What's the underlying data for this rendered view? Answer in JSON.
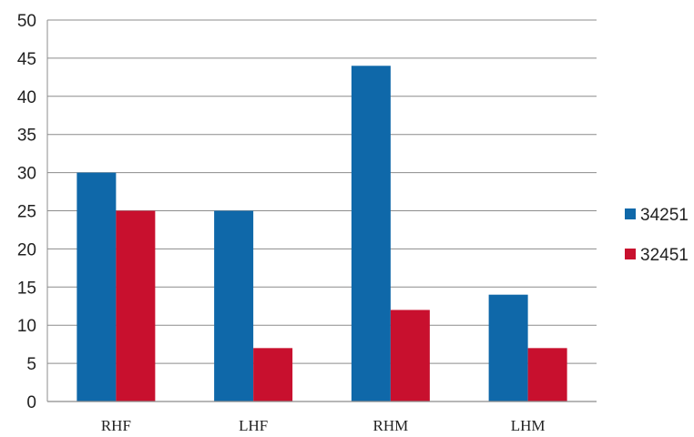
{
  "chart_data": {
    "type": "bar",
    "categories": [
      "RHF",
      "LHF",
      "RHM",
      "LHM"
    ],
    "series": [
      {
        "name": "34251",
        "values": [
          30,
          25,
          44,
          14
        ],
        "color": "#0f68a9"
      },
      {
        "name": "32451",
        "values": [
          25,
          7,
          12,
          7
        ],
        "color": "#c8102e"
      }
    ],
    "title": "",
    "xlabel": "",
    "ylabel": "",
    "ylim": [
      0,
      50
    ],
    "yticks": [
      0,
      5,
      10,
      15,
      20,
      25,
      30,
      35,
      40,
      45,
      50
    ],
    "grid": true,
    "legend_position": "right"
  }
}
